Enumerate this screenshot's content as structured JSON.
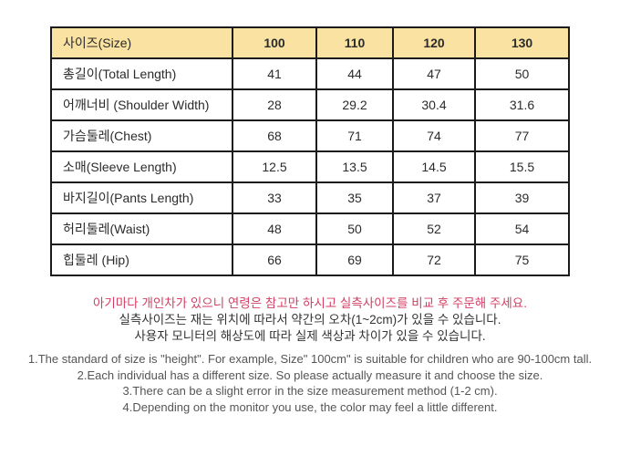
{
  "table": {
    "header": {
      "label": "사이즈(Size)",
      "sizes": [
        "100",
        "110",
        "120",
        "130"
      ]
    },
    "rows": [
      {
        "label": "총길이(Total Length)",
        "values": [
          "41",
          "44",
          "47",
          "50"
        ]
      },
      {
        "label": "어깨너비 (Shoulder Width)",
        "values": [
          "28",
          "29.2",
          "30.4",
          "31.6"
        ]
      },
      {
        "label": "가슴둘레(Chest)",
        "values": [
          "68",
          "71",
          "74",
          "77"
        ]
      },
      {
        "label": "소매(Sleeve Length)",
        "values": [
          "12.5",
          "13.5",
          "14.5",
          "15.5"
        ]
      },
      {
        "label": "바지길이(Pants Length)",
        "values": [
          "33",
          "35",
          "37",
          "39"
        ]
      },
      {
        "label": "허리둘레(Waist)",
        "values": [
          "48",
          "50",
          "52",
          "54"
        ]
      },
      {
        "label": "힙둘레 (Hip)",
        "values": [
          "66",
          "69",
          "72",
          "75"
        ]
      }
    ]
  },
  "notes_korean": {
    "warning": "아기마다 개인차가 있으니 연령은 참고만 하시고 실측사이즈를 비교 후 주문해 주세요.",
    "line2": "실측사이즈는 재는 위치에 따라서 약간의  오차(1~2cm)가 있을 수 있습니다.",
    "line3": "사용자 모니터의 해상도에 따라 실제 색상과 차이가 있을 수 있습니다."
  },
  "notes_english": {
    "line1": "1.The standard of size is \"height\". For example,  Size\" 100cm\" is suitable for children who are 90-100cm tall.",
    "line2": "2.Each individual has a different size. So please actually measure it and choose the size.",
    "line3": "3.There can be a slight error in the size measurement method (1-2 cm).",
    "line4": "4.Depending on the monitor you use, the color may feel a little different."
  },
  "colors": {
    "header_bg": "#f9e2a2",
    "border": "#1b1b1b",
    "warning_red": "#d23f63",
    "body_text": "#333333",
    "note_gray": "#555555"
  }
}
